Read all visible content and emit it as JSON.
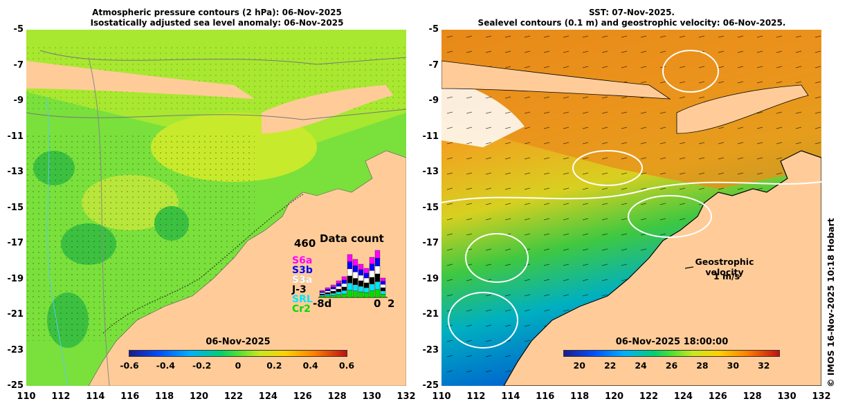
{
  "left_panel": {
    "title_line1": "Atmospheric pressure contours (2 hPa): 06-Nov-2025",
    "title_line2": "Isostatically adjusted sea level anomaly: 06-Nov-2025",
    "colorbar": {
      "date": "06-Nov-2025",
      "ticks": [
        "-0.6",
        "-0.4",
        "-0.2",
        "0",
        "0.2",
        "0.4",
        "0.6"
      ],
      "range": [
        -0.6,
        0.6
      ]
    },
    "data_count": {
      "title": "Data count",
      "max_label": "460",
      "satellites": [
        {
          "name": "S6a",
          "color": "#ff00ff"
        },
        {
          "name": "S3b",
          "color": "#0000ff"
        },
        {
          "name": "S3a",
          "color": "#ffffff"
        },
        {
          "name": "J-3",
          "color": "#000000"
        },
        {
          "name": "SRL",
          "color": "#00e5ff"
        },
        {
          "name": "Cr2",
          "color": "#00dd00"
        }
      ],
      "axis_labels": [
        "-8d",
        "0",
        "2"
      ]
    }
  },
  "right_panel": {
    "title_line1": "SST: 07-Nov-2025.",
    "title_line2": "Sealevel contours (0.1 m) and geostrophic velocity: 06-Nov-2025.",
    "colorbar": {
      "date": "06-Nov-2025 18:00:00",
      "ticks": [
        "20",
        "22",
        "24",
        "26",
        "28",
        "30",
        "32"
      ],
      "range": [
        19,
        33
      ]
    },
    "velocity_label": "Geostrophic velocity",
    "velocity_scale": "1 m/s"
  },
  "axes": {
    "x_ticks": [
      "110",
      "112",
      "114",
      "116",
      "118",
      "120",
      "122",
      "124",
      "126",
      "128",
      "130",
      "132"
    ],
    "y_ticks": [
      "-5",
      "-7",
      "-9",
      "-11",
      "-13",
      "-15",
      "-17",
      "-19",
      "-21",
      "-23",
      "-25"
    ]
  },
  "credit": "© IMOS 16-Nov-2025 10:18 Hobart"
}
